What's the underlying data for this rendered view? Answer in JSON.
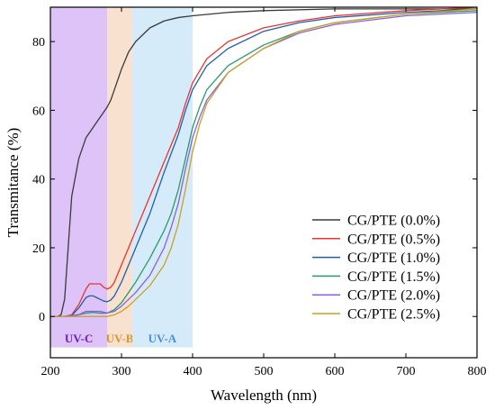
{
  "chart_data": {
    "type": "line",
    "xlabel": "Wavelength (nm)",
    "ylabel": "Transmitance (%)",
    "xlim": [
      200,
      800
    ],
    "ylim": [
      -12,
      90
    ],
    "x_ticks": [
      200,
      300,
      400,
      500,
      600,
      700,
      800
    ],
    "y_ticks": [
      0,
      20,
      40,
      60,
      80
    ],
    "grid": false,
    "legend_position": "bottom-right",
    "bands": [
      {
        "label": "UV-C",
        "range": [
          200,
          280
        ],
        "color": "#d7b8f7",
        "label_color": "#6a1fc2"
      },
      {
        "label": "UV-B",
        "range": [
          280,
          315
        ],
        "color": "#f8dcc8",
        "label_color": "#d9952a"
      },
      {
        "label": "UV-A",
        "range": [
          315,
          400
        ],
        "color": "#cfe8f9",
        "label_color": "#4b8fd8"
      }
    ],
    "series": [
      {
        "name": "CG/PTE (0.0%)",
        "color": "#3a3a3a",
        "x": [
          200,
          210,
          215,
          220,
          225,
          230,
          240,
          250,
          260,
          270,
          280,
          285,
          290,
          300,
          310,
          320,
          340,
          360,
          380,
          400,
          450,
          500,
          600,
          700,
          800
        ],
        "y": [
          0,
          0,
          0.5,
          5,
          20,
          35,
          46,
          52,
          55,
          58,
          61,
          63,
          66,
          72,
          77,
          80,
          84,
          86,
          87,
          87.5,
          88.5,
          89,
          89.5,
          89.5,
          89.5
        ]
      },
      {
        "name": "CG/PTE (0.5%)",
        "color": "#e8342f",
        "x": [
          200,
          220,
          230,
          240,
          250,
          255,
          260,
          265,
          270,
          275,
          280,
          285,
          290,
          300,
          310,
          320,
          340,
          360,
          380,
          390,
          400,
          420,
          450,
          500,
          550,
          600,
          700,
          800
        ],
        "y": [
          0,
          0,
          0.5,
          3.5,
          8,
          9.5,
          9.5,
          9.5,
          9.5,
          8.5,
          8,
          8.5,
          10,
          15,
          20,
          25,
          35,
          45,
          55,
          62,
          68,
          75,
          80,
          84,
          86,
          87.5,
          89,
          90
        ]
      },
      {
        "name": "CG/PTE (1.0%)",
        "color": "#1f5fa8",
        "x": [
          200,
          220,
          230,
          240,
          250,
          255,
          260,
          265,
          270,
          275,
          280,
          285,
          290,
          300,
          310,
          320,
          340,
          360,
          380,
          390,
          400,
          420,
          450,
          500,
          550,
          600,
          700,
          800
        ],
        "y": [
          0,
          0,
          0.3,
          2.5,
          5.5,
          6,
          6,
          5.5,
          5,
          4.5,
          4.3,
          4.8,
          6,
          10,
          15,
          20,
          30,
          42,
          53,
          60,
          66,
          73,
          78,
          83,
          85.5,
          87,
          88.5,
          89.5
        ]
      },
      {
        "name": "CG/PTE (1.5%)",
        "color": "#2a9a6a",
        "x": [
          200,
          220,
          240,
          250,
          260,
          270,
          280,
          290,
          300,
          310,
          320,
          340,
          360,
          370,
          380,
          390,
          400,
          410,
          420,
          450,
          500,
          550,
          600,
          700,
          800
        ],
        "y": [
          0,
          0,
          0.5,
          1,
          1.2,
          1,
          1,
          2,
          4,
          7,
          10,
          17,
          25,
          30,
          37,
          46,
          55,
          61,
          66,
          73,
          79,
          83,
          85.5,
          88,
          89
        ]
      },
      {
        "name": "CG/PTE (2.0%)",
        "color": "#8a5fe0",
        "x": [
          200,
          220,
          240,
          250,
          260,
          270,
          280,
          290,
          300,
          310,
          320,
          340,
          360,
          370,
          380,
          390,
          400,
          410,
          420,
          450,
          500,
          550,
          600,
          700,
          800
        ],
        "y": [
          0,
          0,
          0.5,
          1.5,
          1.5,
          1.5,
          1,
          1.5,
          3,
          5,
          7,
          12,
          20,
          26,
          33,
          43,
          52,
          58,
          63,
          71,
          78,
          82.5,
          85,
          87.5,
          88.5
        ]
      },
      {
        "name": "CG/PTE (2.5%)",
        "color": "#c9a020",
        "x": [
          200,
          260,
          280,
          290,
          300,
          310,
          320,
          340,
          360,
          370,
          380,
          390,
          400,
          410,
          420,
          450,
          500,
          550,
          600,
          700,
          800
        ],
        "y": [
          0,
          0,
          0,
          0.5,
          1.5,
          3,
          5,
          9,
          15,
          20,
          27,
          37,
          48,
          56,
          62,
          71,
          78,
          83,
          85.5,
          88,
          89.5
        ]
      }
    ]
  }
}
